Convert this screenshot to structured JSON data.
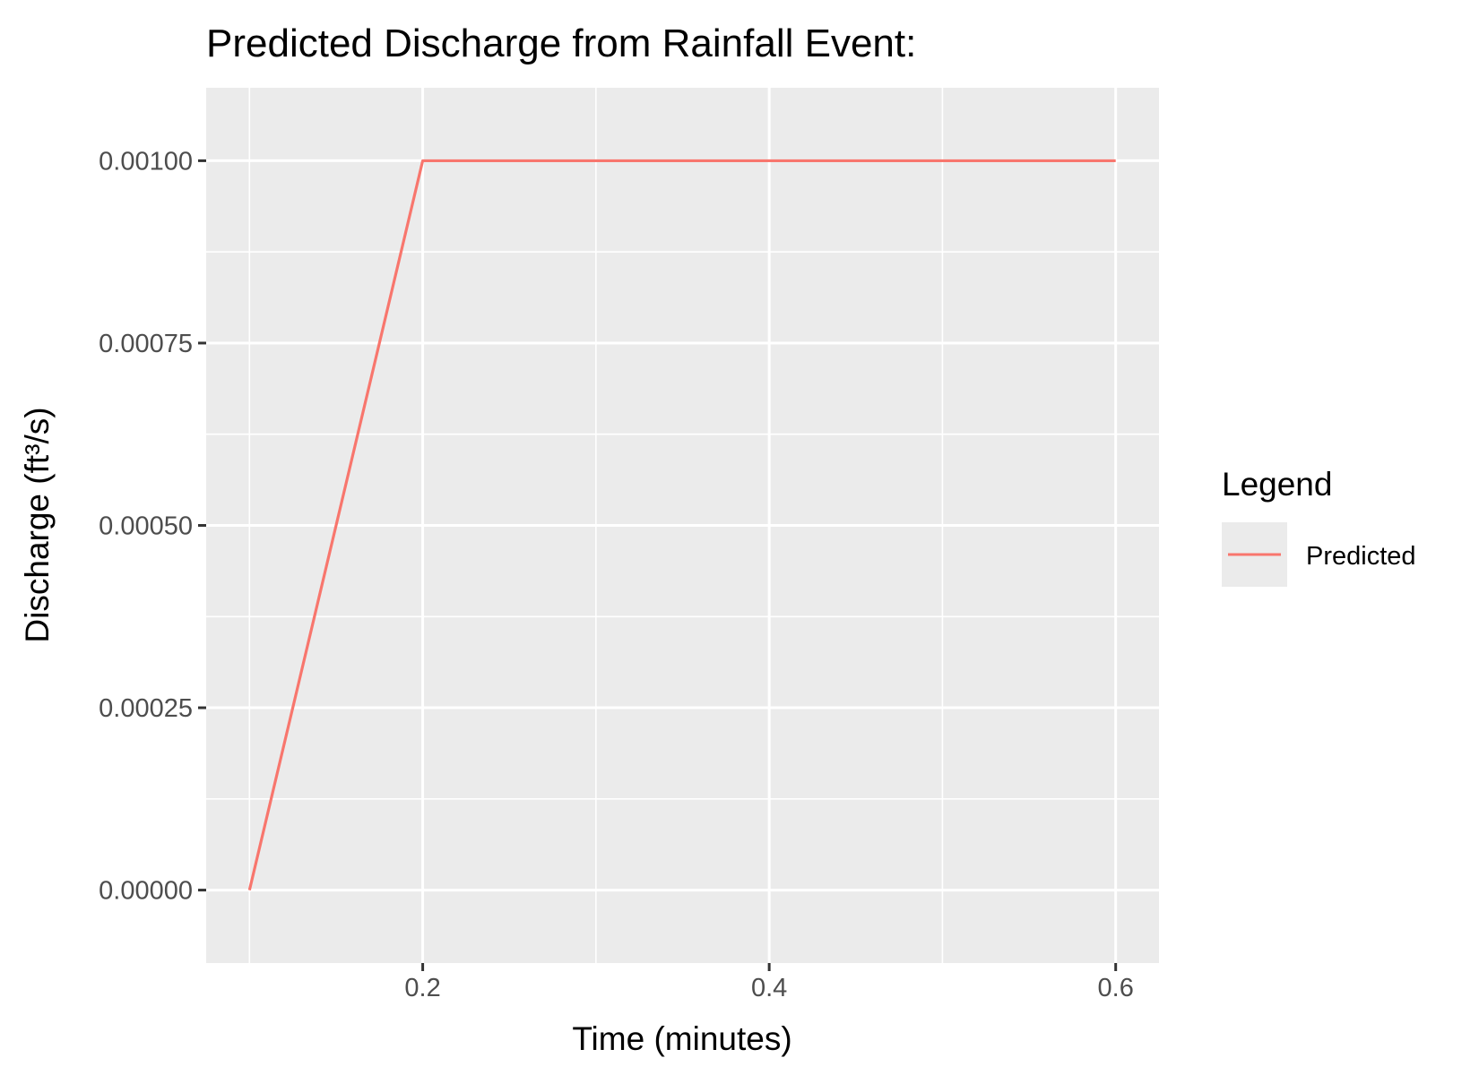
{
  "chart_data": {
    "type": "line",
    "title": "Predicted Discharge from Rainfall Event:",
    "xlabel": "Time (minutes)",
    "ylabel": "Discharge (ft³/s)",
    "xlim": [
      0.075,
      0.625
    ],
    "ylim": [
      -0.0001,
      0.0011
    ],
    "x_ticks": [
      0.2,
      0.4,
      0.6
    ],
    "x_tick_labels": [
      "0.2",
      "0.4",
      "0.6"
    ],
    "x_minor_ticks": [
      0.1,
      0.3,
      0.5
    ],
    "y_ticks": [
      0,
      0.00025,
      0.0005,
      0.00075,
      0.001
    ],
    "y_tick_labels": [
      "0.00000",
      "0.00025",
      "0.00050",
      "0.00075",
      "0.00100"
    ],
    "y_minor_ticks": [
      0.000125,
      0.000375,
      0.000625,
      0.000875
    ],
    "grid": true,
    "legend": {
      "title": "Legend",
      "position": "right"
    },
    "series": [
      {
        "name": "Predicted",
        "color": "#f8766d",
        "x": [
          0.1,
          0.2,
          0.3,
          0.4,
          0.5,
          0.6
        ],
        "y": [
          0,
          0.001,
          0.001,
          0.001,
          0.001,
          0.001
        ]
      }
    ],
    "panel_color": "#ebebeb",
    "grid_color": "#ffffff"
  }
}
